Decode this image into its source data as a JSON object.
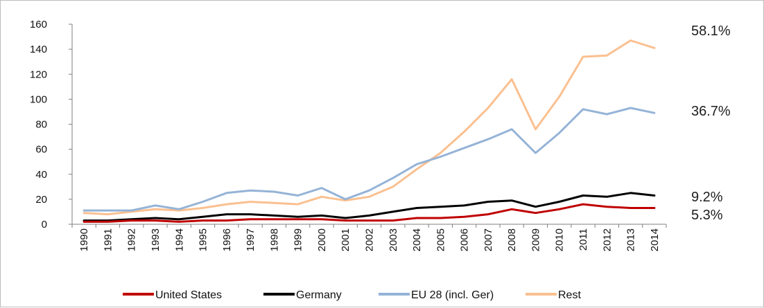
{
  "chart_data": {
    "type": "line",
    "title": "",
    "xlabel": "",
    "ylabel": "",
    "ylim": [
      0,
      160
    ],
    "yticks": [
      "0",
      "20",
      "40",
      "60",
      "80",
      "100",
      "120",
      "140",
      "160"
    ],
    "categories": [
      "1990",
      "1991",
      "1992",
      "1993",
      "1994",
      "1995",
      "1996",
      "1997",
      "1998",
      "1999",
      "2000",
      "2001",
      "2002",
      "2003",
      "2004",
      "2005",
      "2006",
      "2007",
      "2008",
      "2009",
      "2010",
      "2011",
      "2012",
      "2013",
      "2014"
    ],
    "grid": false,
    "legend_position": "bottom",
    "series": [
      {
        "name": "United States",
        "color": "#c00000",
        "values": [
          2,
          2,
          3,
          3,
          2,
          3,
          3,
          4,
          4,
          4,
          4,
          3,
          3,
          3,
          5,
          5,
          6,
          8,
          12,
          9,
          12,
          16,
          14,
          13,
          13
        ],
        "end_label": "5.3%"
      },
      {
        "name": "Germany",
        "color": "#000000",
        "values": [
          3,
          3,
          4,
          5,
          4,
          6,
          8,
          8,
          7,
          6,
          7,
          5,
          7,
          10,
          13,
          14,
          15,
          18,
          19,
          14,
          18,
          23,
          22,
          25,
          23
        ],
        "end_label": "9.2%"
      },
      {
        "name": "EU 28 (incl. Ger)",
        "color": "#95b3d7",
        "values": [
          11,
          11,
          11,
          15,
          12,
          18,
          25,
          27,
          26,
          23,
          29,
          20,
          27,
          37,
          48,
          54,
          61,
          68,
          76,
          57,
          73,
          92,
          88,
          93,
          89
        ],
        "end_label": "36.7%"
      },
      {
        "name": "Rest",
        "color": "#fac090",
        "values": [
          9,
          8,
          10,
          12,
          11,
          13,
          16,
          18,
          17,
          16,
          22,
          19,
          22,
          30,
          44,
          57,
          74,
          93,
          116,
          76,
          102,
          134,
          135,
          147,
          141
        ],
        "end_label": "58.1%"
      }
    ]
  }
}
